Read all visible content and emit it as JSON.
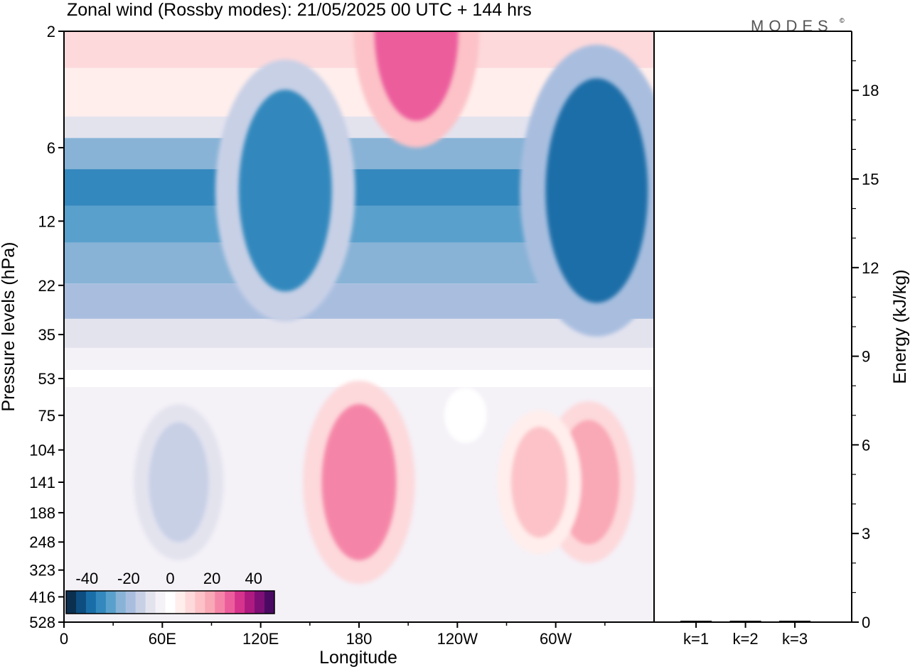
{
  "brand": {
    "logo": "MODES",
    "mark": "©"
  },
  "chart_data": [
    {
      "type": "heatmap",
      "title": "Zonal wind (Rossby modes):  21/05/2025  00 UTC  + 144 hrs",
      "xlabel": "Longitude",
      "ylabel": "Pressure levels (hPa)",
      "x_ticks": [
        "0",
        "60E",
        "120E",
        "180",
        "120W",
        "60W"
      ],
      "x_tick_deg": [
        0,
        60,
        120,
        180,
        240,
        300
      ],
      "y_ticks": [
        "2",
        "6",
        "12",
        "22",
        "35",
        "53",
        "75",
        "104",
        "141",
        "188",
        "248",
        "323",
        "416",
        "528"
      ],
      "colorbar": {
        "tick_labels": [
          "-40",
          "-20",
          "0",
          "20",
          "40"
        ],
        "tick_values": [
          -40,
          -20,
          0,
          20,
          40
        ],
        "range": [
          -50,
          50
        ],
        "step": 5,
        "colors": [
          "#0b2f4f",
          "#0d4d80",
          "#1a6ea8",
          "#3388bd",
          "#5aa0cc",
          "#88b3d6",
          "#a9bedf",
          "#c8d0e6",
          "#e3e3ee",
          "#f4f1f7",
          "#ffffff",
          "#ffeeec",
          "#fdd9db",
          "#fcc2c7",
          "#f9a8b5",
          "#f585a8",
          "#ec5d9c",
          "#d6338d",
          "#ae1a80",
          "#7d0f76",
          "#4a0a63"
        ]
      },
      "wind_bands": [
        {
          "level": "2",
          "value": 12
        },
        {
          "level": "4",
          "value": 4
        },
        {
          "level": "5",
          "value": -12
        },
        {
          "level": "6",
          "value": -25
        },
        {
          "level": "9",
          "value": -33
        },
        {
          "level": "12",
          "value": -30
        },
        {
          "level": "18",
          "value": -24
        },
        {
          "level": "26",
          "value": -18
        },
        {
          "level": "35",
          "value": -12
        },
        {
          "level": "45",
          "value": -5
        },
        {
          "level": "53",
          "value": 2
        }
      ],
      "wind_features": [
        {
          "lon": 180,
          "level": "141",
          "value": 25
        },
        {
          "lon": 245,
          "level": "75",
          "value": 0
        },
        {
          "lon": 70,
          "level": "141",
          "value": -17
        },
        {
          "lon": 320,
          "level": "141",
          "value": 18
        },
        {
          "lon": 290,
          "level": "141",
          "value": 15
        },
        {
          "lon": 135,
          "level": "9",
          "value": -35
        },
        {
          "lon": 325,
          "level": "9",
          "value": -40
        },
        {
          "lon": 215,
          "level": "2",
          "value": 30
        }
      ]
    },
    {
      "type": "bar",
      "ylabel": "Energy (kJ/kg)",
      "categories": [
        "k=1",
        "k=2",
        "k=3"
      ],
      "values": [
        0.03,
        0.02,
        0.02
      ],
      "ylim": [
        0,
        20
      ],
      "y_ticks": [
        0,
        3,
        6,
        9,
        12,
        15,
        18
      ]
    }
  ]
}
